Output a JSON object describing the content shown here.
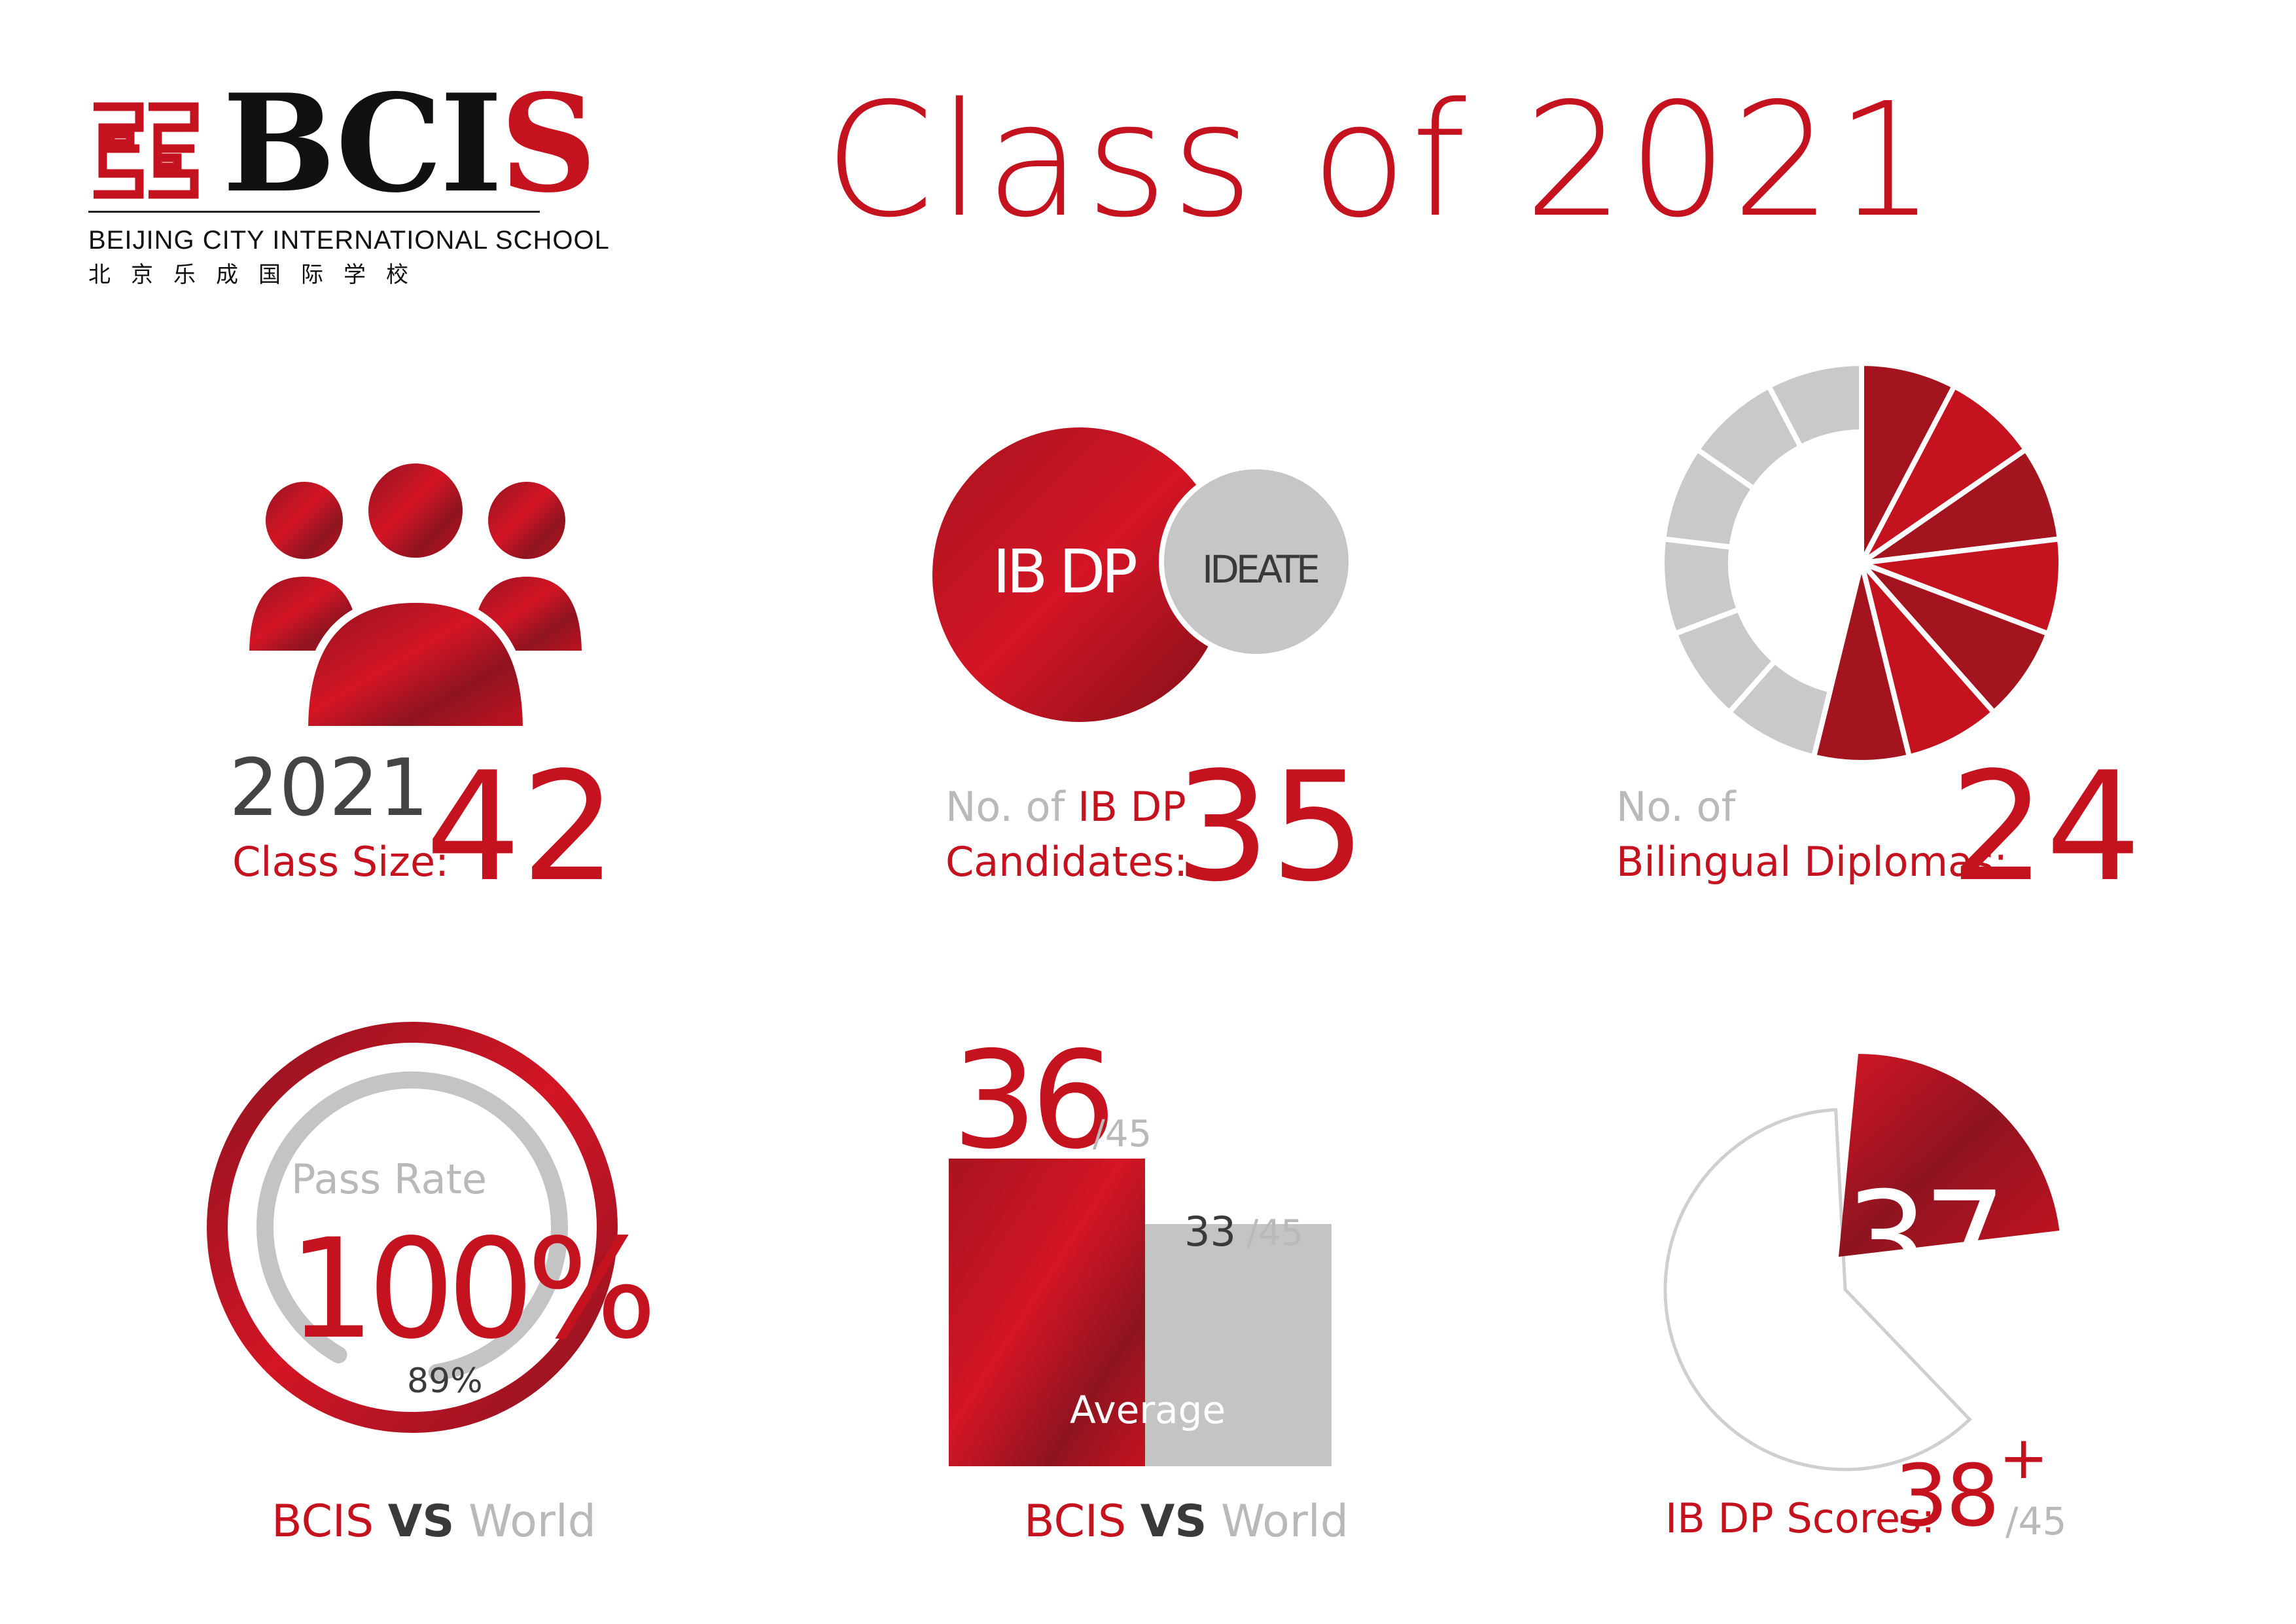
{
  "header": {
    "logo_text_bci": "BCI",
    "logo_text_s": "S",
    "school_name_en": "BEIJING CITY INTERNATIONAL SCHOOL",
    "school_name_zh": "北京乐成国际学校",
    "title": "Class of 2021"
  },
  "colors": {
    "accent_red": "#c5121f",
    "dark_red": "#8e1420",
    "grey": "#c4c4c4",
    "text_dark": "#3a3a3a"
  },
  "class_size": {
    "year": "2021",
    "label": "Class Size:",
    "value": "42",
    "icon": "people-group-icon"
  },
  "ibdp_candidates": {
    "venn_primary": "IB DP",
    "venn_secondary": "IDEATE",
    "label_line1_prefix": "No. of ",
    "label_line1_highlight": "IB DP",
    "label_line2": "Candidates:",
    "value": "35"
  },
  "bilingual": {
    "label_line1": "No. of",
    "label_line2": "Bilingual Diplomas:",
    "value": "24",
    "segments_total": 13,
    "segments_red": 7
  },
  "pass_rate": {
    "label": "Pass Rate",
    "bcis_value": "100%",
    "world_value": "89%",
    "bcis_fraction": 1.0,
    "world_fraction": 0.89,
    "vs_left": "BCIS",
    "vs_mid": "VS",
    "vs_right": "World"
  },
  "average_score": {
    "bcis_value": "36",
    "bcis_max": "/45",
    "world_value": "33",
    "world_max": "/45",
    "bcis_numeric": 36,
    "world_numeric": 33,
    "max_numeric": 45,
    "label": "Average",
    "vs_left": "BCIS",
    "vs_mid": "VS",
    "vs_right": "World"
  },
  "top_scores": {
    "percent_value": "37",
    "percent_sign": "%",
    "percent_fraction": 0.37,
    "label": "IB DP Scores:",
    "score": "38",
    "plus": "+",
    "max": "/45"
  }
}
